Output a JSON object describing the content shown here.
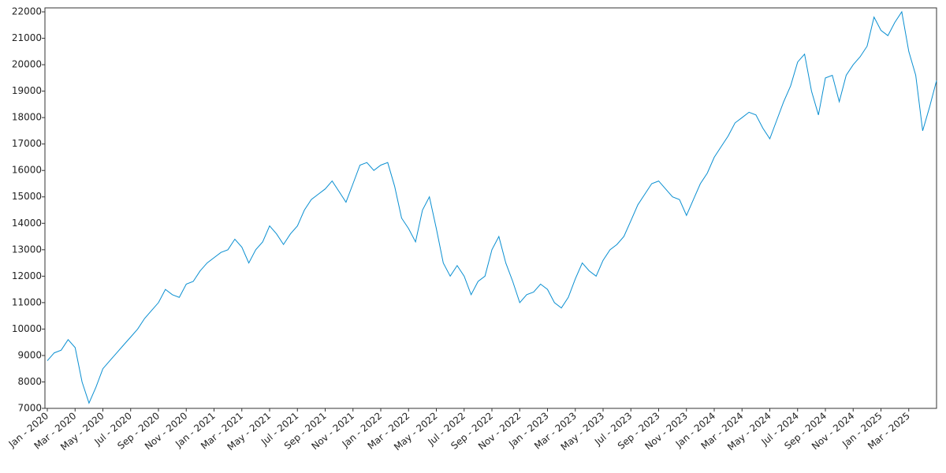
{
  "chart_data": {
    "type": "line",
    "categories": [
      "Jan - 2020",
      null,
      null,
      null,
      "Mar - 2020",
      null,
      null,
      null,
      "May - 2020",
      null,
      null,
      null,
      "Jul - 2020",
      null,
      null,
      null,
      "Sep - 2020",
      null,
      null,
      null,
      "Nov - 2020",
      null,
      null,
      null,
      "Jan - 2021",
      null,
      null,
      null,
      "Mar - 2021",
      null,
      null,
      null,
      "May - 2021",
      null,
      null,
      null,
      "Jul - 2021",
      null,
      null,
      null,
      "Sep - 2021",
      null,
      null,
      null,
      "Nov - 2021",
      null,
      null,
      null,
      "Jan - 2022",
      null,
      null,
      null,
      "Mar - 2022",
      null,
      null,
      null,
      "May - 2022",
      null,
      null,
      null,
      "Jul - 2022",
      null,
      null,
      null,
      "Sep - 2022",
      null,
      null,
      null,
      "Nov - 2022",
      null,
      null,
      null,
      "Jan - 2023",
      null,
      null,
      null,
      "Mar - 2023",
      null,
      null,
      null,
      "May - 2023",
      null,
      null,
      null,
      "Jul - 2023",
      null,
      null,
      null,
      "Sep - 2023",
      null,
      null,
      null,
      "Nov - 2023",
      null,
      null,
      null,
      "Jan - 2024",
      null,
      null,
      null,
      "Mar - 2024",
      null,
      null,
      null,
      "May - 2024",
      null,
      null,
      null,
      "Jul - 2024",
      null,
      null,
      null,
      "Sep - 2024",
      null,
      null,
      null,
      "Nov - 2024",
      null,
      null,
      null,
      "Jan - 2025",
      null,
      null,
      null,
      "Mar - 2025",
      null,
      null,
      null,
      null
    ],
    "values": [
      8800,
      9100,
      9200,
      9600,
      9300,
      8000,
      7200,
      7800,
      8500,
      8800,
      9100,
      9400,
      9700,
      10000,
      10400,
      10700,
      11000,
      11500,
      11300,
      11200,
      11700,
      11800,
      12200,
      12500,
      12700,
      12900,
      13000,
      13400,
      13100,
      12500,
      13000,
      13300,
      13900,
      13600,
      13200,
      13600,
      13900,
      14500,
      14900,
      15100,
      15300,
      15600,
      15200,
      14800,
      15500,
      16200,
      16300,
      16000,
      16200,
      16300,
      15400,
      14200,
      13800,
      13300,
      14500,
      15000,
      13800,
      12500,
      12000,
      12400,
      12000,
      11300,
      11800,
      12000,
      13000,
      13500,
      12500,
      11800,
      11000,
      11300,
      11400,
      11700,
      11500,
      11000,
      10800,
      11200,
      11900,
      12500,
      12200,
      12000,
      12600,
      13000,
      13200,
      13500,
      14100,
      14700,
      15100,
      15500,
      15600,
      15300,
      15000,
      14900,
      14300,
      14900,
      15500,
      15900,
      16500,
      16900,
      17300,
      17800,
      18000,
      18200,
      18100,
      17600,
      17200,
      17900,
      18600,
      19200,
      20100,
      20400,
      19000,
      18100,
      19500,
      19600,
      18600,
      19600,
      20000,
      20300,
      20700,
      21800,
      21300,
      21100,
      21600,
      22000,
      20500,
      19600,
      17500,
      18400,
      19400
    ],
    "color": "#0a8fd1",
    "ylim": [
      7000,
      22150
    ],
    "yticks": [
      7000,
      8000,
      9000,
      10000,
      11000,
      12000,
      13000,
      14000,
      15000,
      16000,
      17000,
      18000,
      19000,
      20000,
      21000,
      22000
    ]
  }
}
